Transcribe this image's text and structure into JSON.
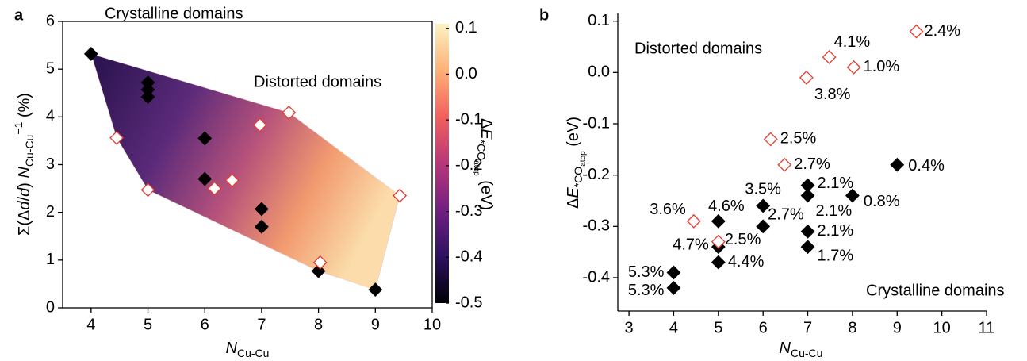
{
  "chart_data": [
    {
      "type": "scatter",
      "panel_label": "a",
      "xlabel": [
        {
          "text": "N",
          "style": "italic"
        },
        {
          "text": "Cu-Cu",
          "style": "sub"
        }
      ],
      "ylabel": [
        {
          "text": "Σ(Δ"
        },
        {
          "text": "d",
          "style": "italic"
        },
        {
          "text": "/"
        },
        {
          "text": "d",
          "style": "italic"
        },
        {
          "text": ") "
        },
        {
          "text": "N",
          "style": "italic"
        },
        {
          "text": "Cu-Cu",
          "style": "sub"
        },
        {
          "text": "−1",
          "style": "sup"
        },
        {
          "text": " (%)"
        }
      ],
      "xlim": [
        3.5,
        10
      ],
      "xticks": [
        4,
        5,
        6,
        7,
        8,
        9,
        10
      ],
      "ylim": [
        0,
        6
      ],
      "yticks": [
        0,
        1,
        2,
        3,
        4,
        5,
        6
      ],
      "series": [
        {
          "name": "Crystalline domains",
          "color": "#000000",
          "marker": "filled",
          "x": [
            4,
            5,
            5,
            5,
            6,
            6,
            7,
            7,
            8,
            9
          ],
          "values": [
            5.32,
            4.72,
            4.57,
            4.42,
            3.55,
            2.7,
            2.07,
            1.7,
            0.77,
            0.38
          ]
        },
        {
          "name": "Distorted domains",
          "color": "#e8392b",
          "marker": "open",
          "x": [
            4.45,
            5,
            6.17,
            6.48,
            6.97,
            7.48,
            8.03,
            9.43
          ],
          "values": [
            3.56,
            2.47,
            2.5,
            2.67,
            3.83,
            4.09,
            0.95,
            2.35
          ]
        }
      ],
      "colorbar": {
        "label": [
          {
            "text": "Δ"
          },
          {
            "text": "E",
            "style": "italic"
          },
          {
            "text": "*CO",
            "style": "sub"
          },
          {
            "text": "atop",
            "style": "subsub"
          },
          {
            "text": " (eV)"
          }
        ],
        "lim": [
          -0.5,
          0.11
        ],
        "ticks": [
          0.1,
          {
            "value": 0,
            "label": "0.0"
          },
          -0.1,
          -0.2,
          -0.3,
          -0.4,
          -0.5
        ],
        "colors": [
          "#000004",
          "#2c115f",
          "#721f81",
          "#b73779",
          "#f1605d",
          "#feb078",
          "#fcf3c2"
        ]
      }
    },
    {
      "type": "scatter",
      "panel_label": "b",
      "xlabel": [
        {
          "text": "N",
          "style": "italic"
        },
        {
          "text": "Cu-Cu",
          "style": "sub"
        }
      ],
      "ylabel": [
        {
          "text": "Δ"
        },
        {
          "text": "E",
          "style": "italic"
        },
        {
          "text": "*CO",
          "style": "sub"
        },
        {
          "text": "atop",
          "style": "subsub"
        },
        {
          "text": " (eV)"
        }
      ],
      "xlim": [
        2.75,
        11
      ],
      "xticks": [
        3,
        4,
        5,
        6,
        7,
        8,
        9,
        10,
        11
      ],
      "ylim": [
        -0.465,
        0.115
      ],
      "yticks": [
        0.1,
        {
          "value": 0,
          "label": "0.0"
        },
        -0.1,
        -0.2,
        -0.3,
        -0.4
      ],
      "series": [
        {
          "name": "Crystalline domains",
          "color": "#000000",
          "marker": "filled",
          "x": [
            4,
            4,
            5,
            5,
            5,
            6,
            6,
            7,
            7,
            7,
            7,
            8,
            9
          ],
          "values": [
            -0.39,
            -0.42,
            -0.29,
            -0.34,
            -0.37,
            -0.26,
            -0.3,
            -0.22,
            -0.24,
            -0.31,
            -0.34,
            -0.24,
            -0.18
          ],
          "point_labels": [
            "5.3%",
            "5.3%",
            "4.6%",
            "4.7%",
            "4.4%",
            "3.5%",
            "2.7%",
            "2.1%",
            "2.1%",
            "2.1%",
            "1.7%",
            "0.8%",
            "0.4%"
          ]
        },
        {
          "name": "Distorted domains",
          "color": "#e8392b",
          "marker": "open",
          "x": [
            4.45,
            5,
            6.17,
            6.48,
            6.97,
            7.48,
            8.03,
            9.43
          ],
          "values": [
            -0.29,
            -0.33,
            -0.13,
            -0.18,
            -0.01,
            0.03,
            0.01,
            0.08
          ],
          "point_labels": [
            "3.6%",
            "2.5%",
            "2.5%",
            "2.7%",
            "3.8%",
            "4.1%",
            "1.0%",
            "2.4%"
          ]
        }
      ]
    }
  ]
}
